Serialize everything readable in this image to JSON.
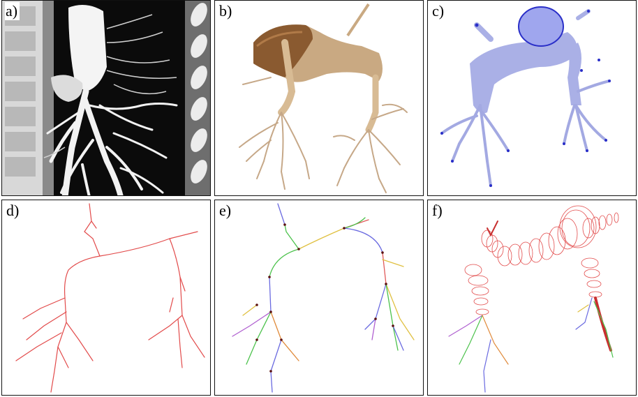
{
  "panels": [
    {
      "id": "a",
      "label": "a)"
    },
    {
      "id": "b",
      "label": "b)"
    },
    {
      "id": "c",
      "label": "c)"
    },
    {
      "id": "d",
      "label": "d)"
    },
    {
      "id": "e",
      "label": "e)"
    },
    {
      "id": "f",
      "label": "f)"
    }
  ],
  "colors": {
    "ct_background": "#0a0a0a",
    "vessel_bright": "#f5f5f5",
    "render_tan": "#c9a982",
    "render_brown": "#8a5a30",
    "mesh_lavender": "#aab0e6",
    "mesh_edge": "#2a2fc8",
    "centerline_red": "#e24a4a",
    "segment_colors": [
      "#e05a5a",
      "#6a6ae0",
      "#4cc24c",
      "#e0c040",
      "#b060d0",
      "#e08a3a"
    ]
  }
}
